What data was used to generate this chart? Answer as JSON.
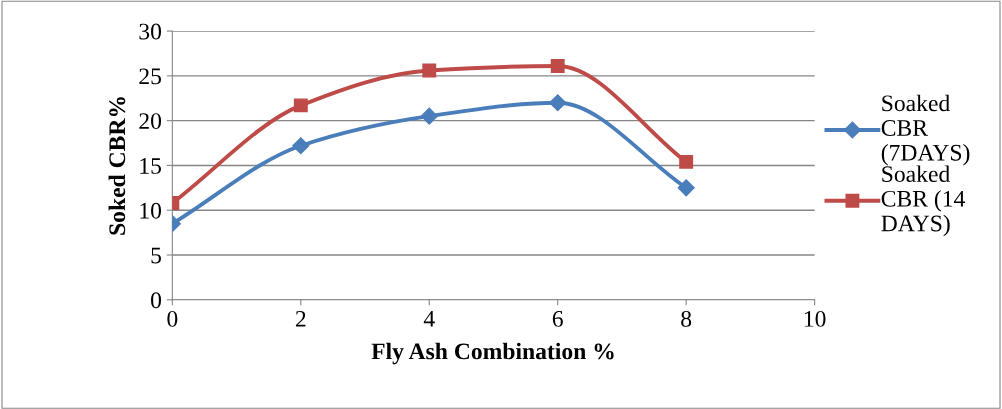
{
  "chart_data": {
    "type": "line",
    "xlabel": "Fly Ash Combination %",
    "ylabel": "Soked CBR%",
    "xlim": [
      0,
      10
    ],
    "xticks": [
      0,
      2,
      4,
      6,
      8,
      10
    ],
    "ylim": [
      0,
      30
    ],
    "yticks": [
      0,
      5,
      10,
      15,
      20,
      25,
      30
    ],
    "grid": "y",
    "legend": "right",
    "marker": "diamond",
    "series": [
      {
        "name": "Soaked CBR (7DAYS)",
        "color": "#4a7ebb",
        "x": [
          0,
          2,
          4,
          6,
          8
        ],
        "values": [
          8.5,
          17.2,
          20.5,
          22.0,
          12.5
        ]
      },
      {
        "name": "Soaked CBR (14 DAYS)",
        "color": "#be4b48",
        "marker": "square",
        "x": [
          0,
          2,
          4,
          6,
          8
        ],
        "values": [
          10.8,
          21.7,
          25.6,
          26.1,
          15.4
        ]
      }
    ]
  }
}
